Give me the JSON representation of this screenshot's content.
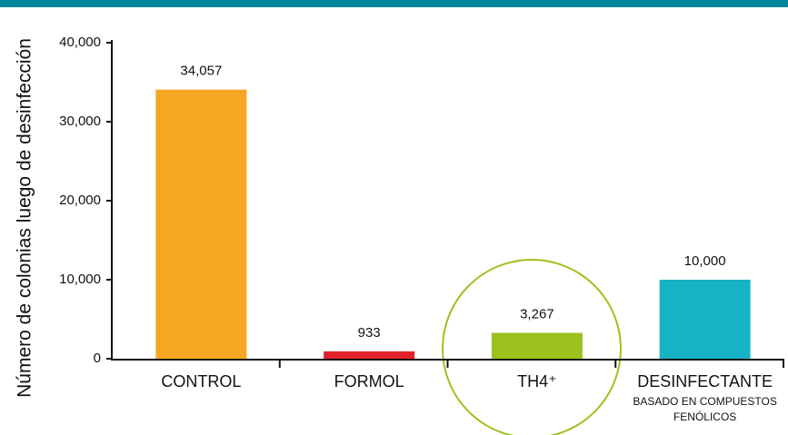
{
  "chart_data": {
    "type": "bar",
    "y_axis_label": "Número de colonias  luego de desinfección",
    "categories": [
      "CONTROL",
      "FORMOL",
      "TH4⁺",
      "DESINFECTANTE"
    ],
    "category_note_lines": [
      "BASADO EN COMPUESTOS",
      "FENÓLICOS"
    ],
    "values": [
      34057,
      933,
      3267,
      10000
    ],
    "value_labels": [
      "34,057",
      "933",
      "3,267",
      "10,000"
    ],
    "colors": [
      "#f6a623",
      "#e2222a",
      "#9dc11d",
      "#17b3c4"
    ],
    "ylim": [
      0,
      40000
    ],
    "yticks": [
      0,
      {
        "value": 10000,
        "label": "10,000"
      },
      {
        "value": 20000,
        "label": "20,000"
      },
      {
        "value": 30000,
        "label": "30,000"
      },
      {
        "value": 40000,
        "label": "40,000"
      }
    ],
    "grid": false
  }
}
